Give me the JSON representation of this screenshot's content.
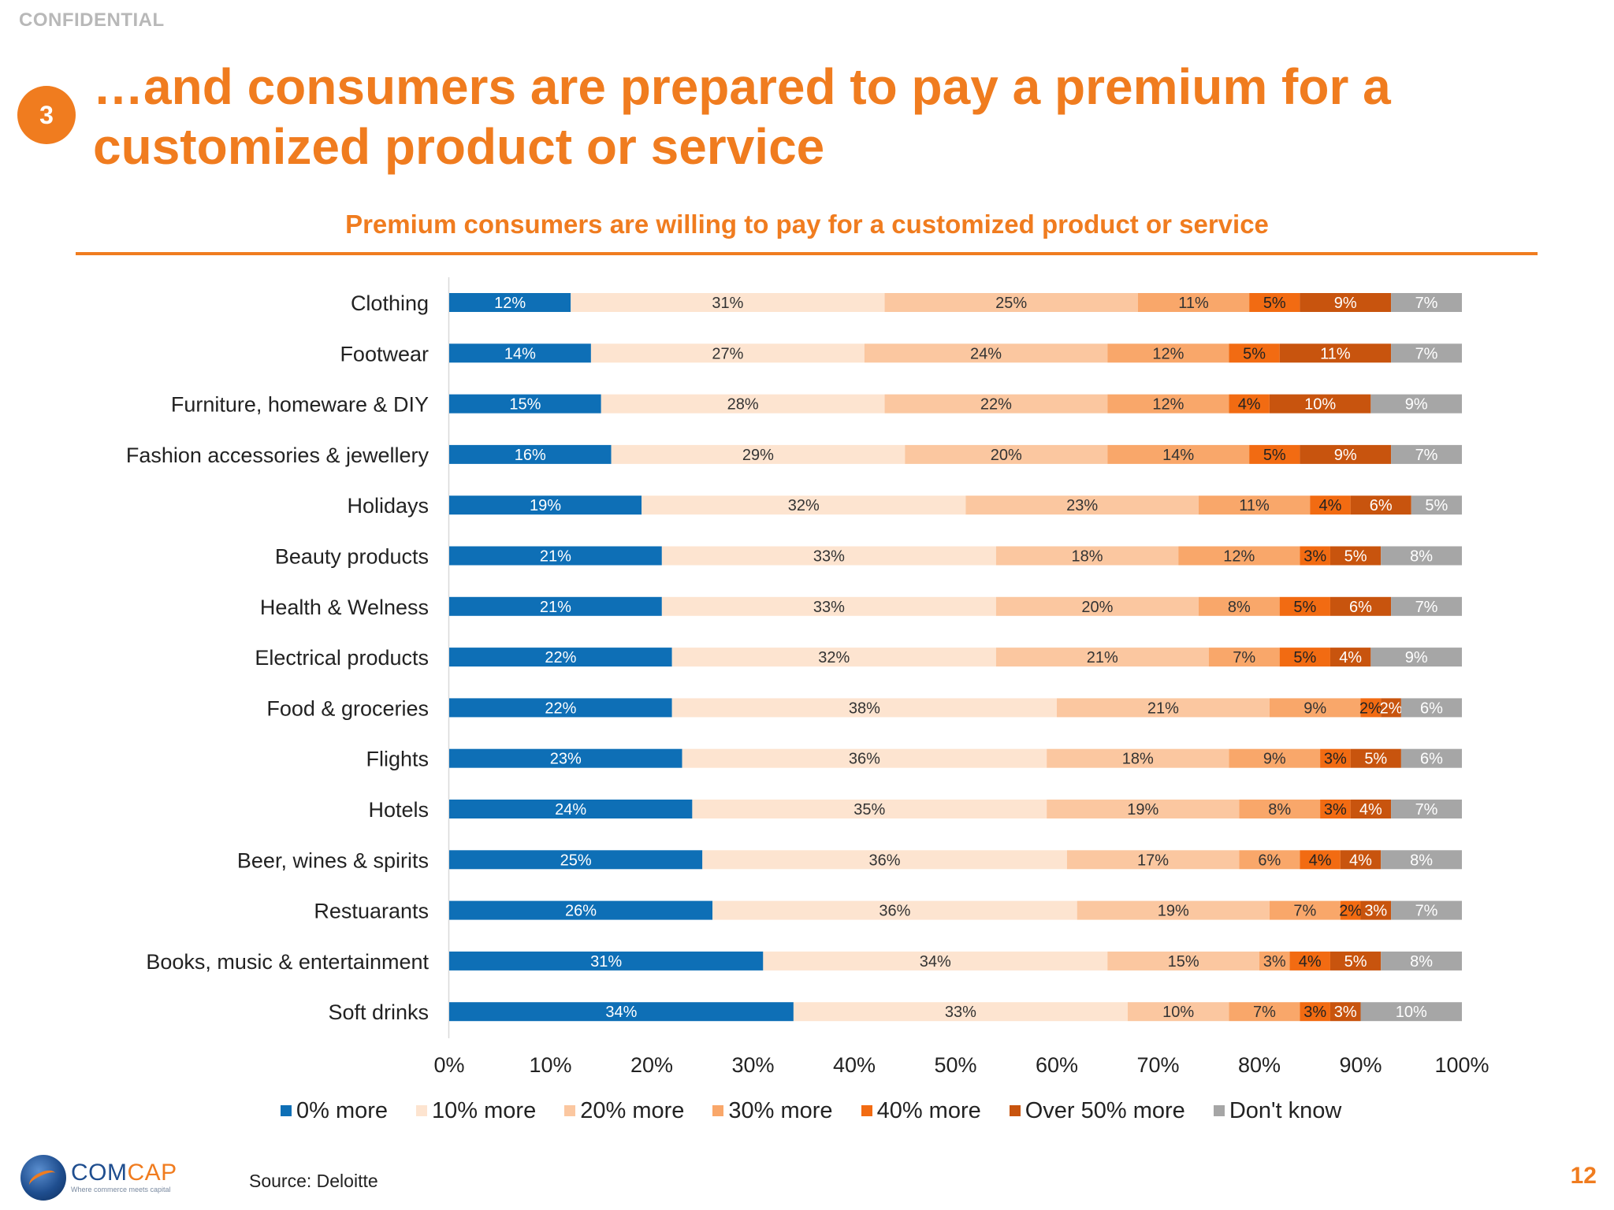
{
  "header": {
    "confidential": "CONFIDENTIAL",
    "section_number": "3",
    "title": "…and consumers are prepared to pay a premium for a customized product or service"
  },
  "chart_data": {
    "type": "bar",
    "orientation": "horizontal",
    "stacked": true,
    "title": "Premium consumers are willing to pay for a customized product or service",
    "categories": [
      "Clothing",
      "Footwear",
      "Furniture, homeware & DIY",
      "Fashion accessories & jewellery",
      "Holidays",
      "Beauty products",
      "Health & Welness",
      "Electrical products",
      "Food & groceries",
      "Flights",
      "Hotels",
      "Beer, wines & spirits",
      "Restuarants",
      "Books, music & entertainment",
      "Soft drinks"
    ],
    "series": [
      {
        "name": "0% more",
        "color": "#0e6fb6",
        "label_color": "#ffffff",
        "values": [
          12,
          14,
          15,
          16,
          19,
          21,
          21,
          22,
          22,
          23,
          24,
          25,
          26,
          31,
          34
        ]
      },
      {
        "name": "10% more",
        "color": "#fde4d0",
        "label_color": "#333333",
        "values": [
          31,
          27,
          28,
          29,
          32,
          33,
          33,
          32,
          38,
          36,
          35,
          36,
          36,
          34,
          33
        ]
      },
      {
        "name": "20% more",
        "color": "#fbc7a0",
        "label_color": "#333333",
        "values": [
          25,
          24,
          22,
          20,
          23,
          18,
          20,
          21,
          21,
          18,
          19,
          17,
          19,
          15,
          10
        ]
      },
      {
        "name": "30% more",
        "color": "#f9a76a",
        "label_color": "#333333",
        "values": [
          11,
          12,
          12,
          14,
          11,
          12,
          8,
          7,
          9,
          9,
          8,
          6,
          7,
          3,
          7
        ]
      },
      {
        "name": "40% more",
        "color": "#f26b12",
        "label_color": "#222222",
        "values": [
          5,
          5,
          4,
          5,
          4,
          3,
          5,
          5,
          2,
          3,
          3,
          4,
          2,
          4,
          3
        ]
      },
      {
        "name": "Over 50% more",
        "color": "#c8540e",
        "label_color": "#ffffff",
        "values": [
          9,
          11,
          10,
          9,
          6,
          5,
          6,
          4,
          2,
          5,
          4,
          4,
          3,
          5,
          3
        ]
      },
      {
        "name": "Don't know",
        "color": "#a6a6a6",
        "label_color": "#ffffff",
        "values": [
          7,
          7,
          9,
          7,
          5,
          8,
          7,
          9,
          6,
          6,
          7,
          8,
          7,
          8,
          10
        ]
      }
    ],
    "x_ticks": [
      "0%",
      "10%",
      "20%",
      "30%",
      "40%",
      "50%",
      "60%",
      "70%",
      "80%",
      "90%",
      "100%"
    ],
    "xlim": [
      0,
      100
    ],
    "grid": false,
    "legend_position": "bottom"
  },
  "footer": {
    "logo_name_a": "COM",
    "logo_name_b": "CAP",
    "logo_tagline": "Where commerce meets capital",
    "source": "Source: Deloitte",
    "page_number": "12"
  }
}
